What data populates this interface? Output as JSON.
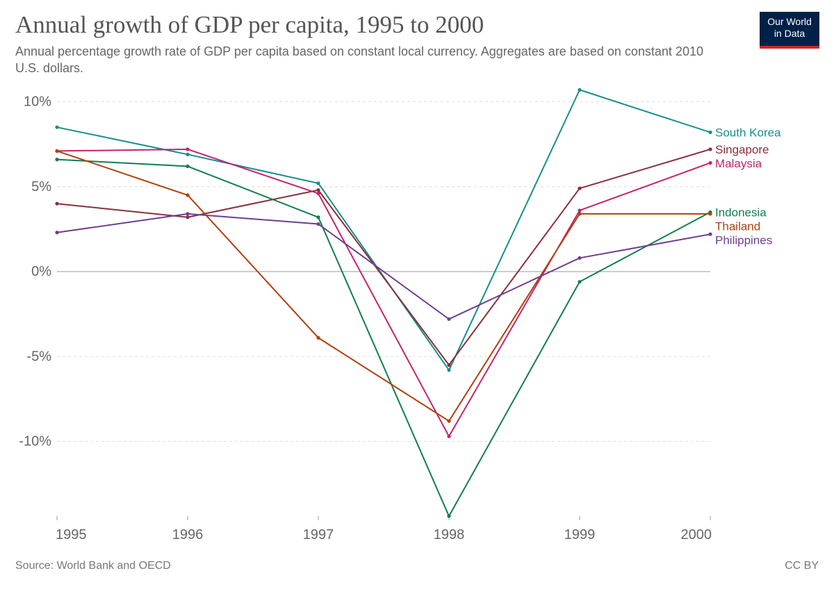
{
  "header": {
    "title": "Annual growth of GDP per capita, 1995 to 2000",
    "subtitle": "Annual percentage growth rate of GDP per capita based on constant local currency. Aggregates are based on constant 2010 U.S. dollars."
  },
  "logo": {
    "line1": "Our World",
    "line2": "in Data"
  },
  "footer": {
    "source": "Source: World Bank and OECD",
    "license": "CC BY"
  },
  "chart_data": {
    "type": "line",
    "title": "Annual growth of GDP per capita, 1995 to 2000",
    "xlabel": "",
    "ylabel": "",
    "x": [
      1995,
      1996,
      1997,
      1998,
      1999,
      2000
    ],
    "x_tick_labels": [
      "1995",
      "1996",
      "1997",
      "1998",
      "1999",
      "2000"
    ],
    "y_ticks": [
      10,
      5,
      0,
      -5,
      -10
    ],
    "y_tick_labels": [
      "10%",
      "5%",
      "0%",
      "-5%",
      "-10%"
    ],
    "ylim": [
      -14.5,
      10.7
    ],
    "grid": "horizontal dashed",
    "legend": "right, inline at line ends",
    "series": [
      {
        "name": "South Korea",
        "color": "#158e8e",
        "values": [
          8.5,
          6.9,
          5.2,
          -5.8,
          10.7,
          8.2
        ]
      },
      {
        "name": "Singapore",
        "color": "#883039",
        "values": [
          4.0,
          3.2,
          4.8,
          -5.5,
          4.9,
          7.2
        ]
      },
      {
        "name": "Malaysia",
        "color": "#c4236d",
        "values": [
          7.1,
          7.2,
          4.6,
          -9.7,
          3.6,
          6.4
        ]
      },
      {
        "name": "Indonesia",
        "color": "#117e4e",
        "values": [
          6.6,
          6.2,
          3.2,
          -14.4,
          -0.6,
          3.5
        ]
      },
      {
        "name": "Thailand",
        "color": "#b2400c",
        "values": [
          7.1,
          4.5,
          -3.9,
          -8.8,
          3.4,
          3.4
        ]
      },
      {
        "name": "Philippines",
        "color": "#6d3e91",
        "values": [
          2.3,
          3.4,
          2.8,
          -2.8,
          0.8,
          2.2
        ]
      }
    ]
  }
}
